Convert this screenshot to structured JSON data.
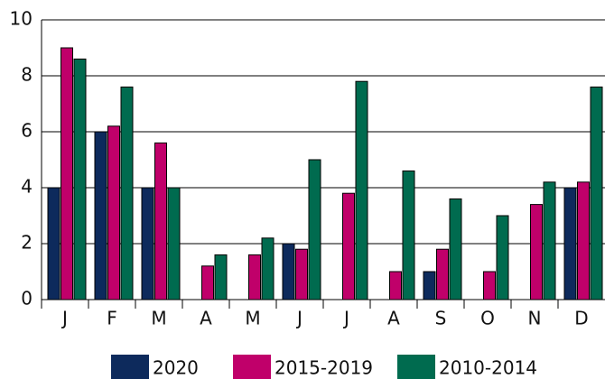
{
  "chart_data": {
    "type": "bar",
    "categories": [
      "J",
      "F",
      "M",
      "A",
      "M",
      "J",
      "J",
      "A",
      "S",
      "O",
      "N",
      "D"
    ],
    "series": [
      {
        "name": "2020",
        "color": "#0d2a5c",
        "values": [
          4,
          6,
          4,
          0,
          0,
          2,
          0,
          0,
          1,
          0,
          0,
          4
        ]
      },
      {
        "name": "2015-2019",
        "color": "#c0006a",
        "values": [
          9,
          6.2,
          5.6,
          1.2,
          1.6,
          1.8,
          3.8,
          1,
          1.8,
          1,
          3.4,
          4.2
        ]
      },
      {
        "name": "2010-2014",
        "color": "#006b4f",
        "values": [
          8.6,
          7.6,
          4,
          1.6,
          2.2,
          5,
          7.8,
          4.6,
          3.6,
          3,
          4.2,
          7.6
        ]
      }
    ],
    "ylim": [
      0,
      10
    ],
    "yticks": [
      0,
      2,
      4,
      6,
      8,
      10
    ],
    "grid": true
  }
}
